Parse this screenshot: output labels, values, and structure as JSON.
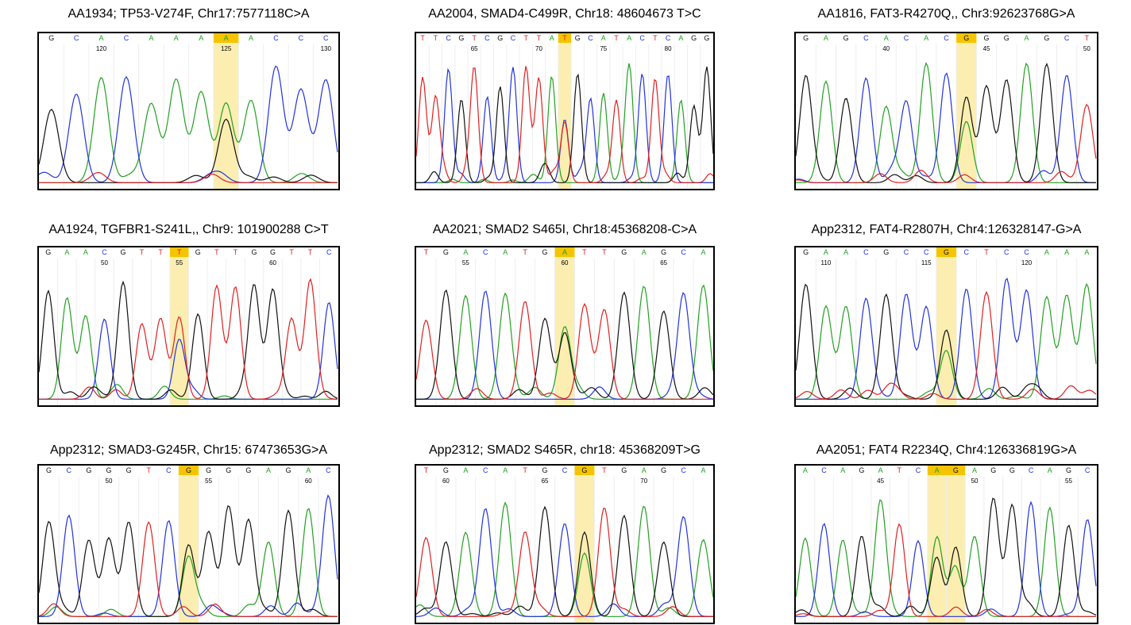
{
  "panels": [
    {
      "title": "AA1934; TP53-V274F, Chr17:7577118C>A",
      "bases": [
        "G",
        "C",
        "A",
        "C",
        "A",
        "A",
        "A",
        "A",
        "A",
        "C",
        "C",
        "C"
      ],
      "positions": [
        "120",
        "125",
        "130"
      ]
    },
    {
      "title": "AA2004, SMAD4-C499R, Chr18: 48604673 T>C",
      "bases": [
        "T",
        "T",
        "C",
        "G",
        "T",
        "C",
        "G",
        "C",
        "T",
        "T",
        "A",
        "T",
        "G",
        "C",
        "A",
        "T",
        "A",
        "C",
        "T",
        "C",
        "A",
        "G",
        "G"
      ],
      "positions": [
        "65",
        "70",
        "75",
        "80"
      ]
    },
    {
      "title": "AA1816, FAT3-R4270Q,, Chr3:92623768G>A",
      "bases": [
        "G",
        "A",
        "G",
        "C",
        "A",
        "C",
        "A",
        "C",
        "G",
        "G",
        "G",
        "A",
        "G",
        "C",
        "T"
      ],
      "positions": [
        "40",
        "45",
        "50"
      ]
    },
    {
      "title": "AA1924, TGFBR1-S241L,, Chr9: 101900288 C>T",
      "bases": [
        "G",
        "A",
        "A",
        "C",
        "G",
        "T",
        "T",
        "T",
        "G",
        "T",
        "T",
        "G",
        "G",
        "T",
        "T",
        "C"
      ],
      "positions": [
        "50",
        "55",
        "60"
      ]
    },
    {
      "title": "AA2021; SMAD2 S465I, Chr18:45368208-C>A",
      "bases": [
        "T",
        "G",
        "A",
        "C",
        "A",
        "T",
        "G",
        "A",
        "T",
        "T",
        "G",
        "A",
        "G",
        "C",
        "A"
      ],
      "positions": [
        "55",
        "60",
        "65"
      ]
    },
    {
      "title": "App2312, FAT4-R2807H, Chr4:126328147-G>A",
      "bases": [
        "G",
        "A",
        "A",
        "C",
        "G",
        "C",
        "C",
        "G",
        "C",
        "T",
        "C",
        "C",
        "A",
        "A",
        "A"
      ],
      "positions": [
        "110",
        "115",
        "120"
      ]
    },
    {
      "title": "App2312; SMAD3-G245R, Chr15: 67473653G>A",
      "bases": [
        "G",
        "C",
        "G",
        "G",
        "G",
        "T",
        "C",
        "G",
        "G",
        "G",
        "G",
        "A",
        "G",
        "A",
        "C"
      ],
      "positions": [
        "50",
        "55",
        "60"
      ]
    },
    {
      "title": "App2312; SMAD2 S465R, chr18: 45368209T>G",
      "bases": [
        "T",
        "G",
        "A",
        "C",
        "A",
        "T",
        "G",
        "C",
        "G",
        "T",
        "G",
        "A",
        "G",
        "C",
        "A"
      ],
      "positions": [
        "60",
        "65",
        "70"
      ]
    },
    {
      "title": "AA2051; FAT4 R2234Q, Chr4:126336819G>A",
      "bases": [
        "A",
        "C",
        "A",
        "G",
        "A",
        "T",
        "C",
        "A",
        "G",
        "A",
        "G",
        "G",
        "C",
        "A",
        "G",
        "C"
      ],
      "positions": [
        "45",
        "50",
        "55"
      ]
    }
  ]
}
